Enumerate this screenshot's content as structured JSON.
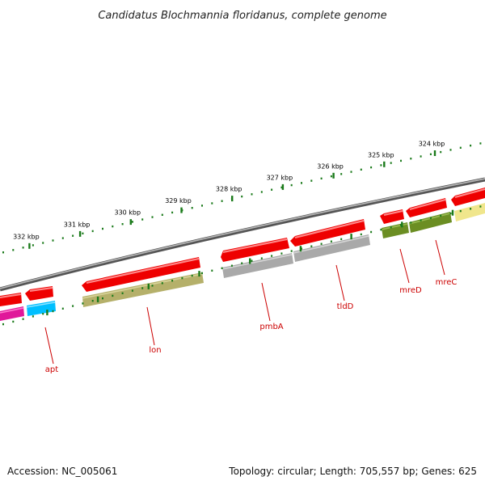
{
  "title": "Candidatus Blochmannia floridanus, complete genome",
  "footer": {
    "accession": "Accession: NC_005061",
    "stats": "Topology: circular; Length: 705,557 bp; Genes: 625"
  },
  "colors": {
    "backbone": "#7a7a7a",
    "tick": "#1a7a1a",
    "label": "#cc0000",
    "red_feature": "#ee0000",
    "khaki": "#b5b06a",
    "gray": "#a9a9a9",
    "olive": "#6b8e23",
    "cyan": "#00bfff",
    "magenta": "#e0189a",
    "pale_yellow": "#f0e68c"
  },
  "ticks": [
    {
      "label": "324 kbp",
      "kbp": 324
    },
    {
      "label": "325 kbp",
      "kbp": 325
    },
    {
      "label": "326 kbp",
      "kbp": 326
    },
    {
      "label": "327 kbp",
      "kbp": 327
    },
    {
      "label": "328 kbp",
      "kbp": 328
    },
    {
      "label": "329 kbp",
      "kbp": 329
    },
    {
      "label": "330 kbp",
      "kbp": 330
    },
    {
      "label": "331 kbp",
      "kbp": 331
    },
    {
      "label": "332 kbp",
      "kbp": 332
    }
  ],
  "genes": [
    {
      "name": "apt"
    },
    {
      "name": "lon"
    },
    {
      "name": "pmbA"
    },
    {
      "name": "tldD"
    },
    {
      "name": "mreD"
    },
    {
      "name": "mreC"
    }
  ]
}
